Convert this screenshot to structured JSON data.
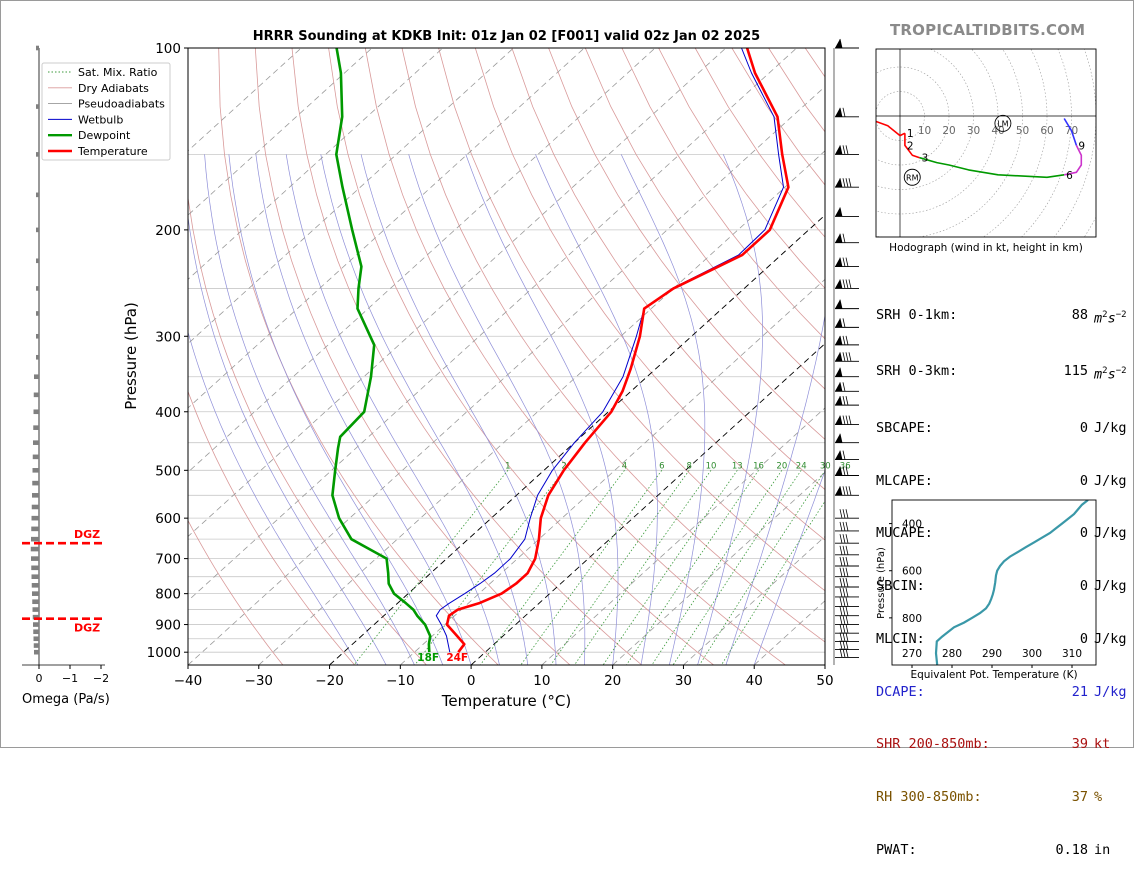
{
  "brand": "TROPICALTIDBITS.COM",
  "chart_data": [
    {
      "type": "line",
      "subtype": "skew-t",
      "title": "HRRR Sounding at KDKB Init: 01z Jan 02 [F001] valid 02z Jan 02 2025",
      "xlabel": "Temperature (°C)",
      "ylabel": "Pressure (hPa)",
      "xlim": [
        -40,
        50
      ],
      "ylim": [
        1050,
        100
      ],
      "yscale": "log",
      "x_ticks": [
        -40,
        -30,
        -20,
        -10,
        0,
        10,
        20,
        30,
        40,
        50
      ],
      "x_tick_labels": [
        "−40",
        "−30",
        "−20",
        "−10",
        "0",
        "10",
        "20",
        "30",
        "40",
        "50"
      ],
      "y_ticks": [
        100,
        200,
        300,
        400,
        500,
        600,
        700,
        800,
        900,
        1000
      ],
      "legend": [
        "Sat. Mix. Ratio",
        "Dry Adiabats",
        "Pseudoadiabats",
        "Wetbulb",
        "Dewpoint",
        "Temperature"
      ],
      "legend_placement": "top-left",
      "mixing_ratio_labels": [
        "1",
        "2",
        "4",
        "6",
        "8",
        "10",
        "13",
        "16",
        "20",
        "24",
        "30",
        "36"
      ],
      "surface_labels": {
        "dewpoint": "18F",
        "temperature": "24F"
      },
      "colors": {
        "temperature": "#ff0000",
        "dewpoint": "#009900",
        "wetbulb": "#0000cc",
        "mixing_ratio": "#2e8b2e",
        "dry_adiabat": "#d08080",
        "pseudoadiabat": "#8080d0"
      },
      "series": [
        {
          "name": "Temperature",
          "p": [
            1000,
            970,
            940,
            900,
            870,
            850,
            830,
            800,
            770,
            740,
            700,
            650,
            600,
            550,
            500,
            450,
            400,
            370,
            340,
            300,
            270,
            250,
            220,
            200,
            170,
            150,
            130,
            110,
            100
          ],
          "t": [
            -3.8,
            -4.2,
            -6.5,
            -9.7,
            -10.8,
            -10.5,
            -8.5,
            -6.8,
            -6.3,
            -6.3,
            -7.5,
            -10.0,
            -13.0,
            -15.5,
            -17.2,
            -18.5,
            -19.6,
            -21.2,
            -23.5,
            -27.3,
            -31.0,
            -30.0,
            -25.5,
            -25.5,
            -29.5,
            -35.5,
            -42.0,
            -52.0,
            -57.0
          ]
        },
        {
          "name": "Dewpoint",
          "p": [
            1000,
            970,
            940,
            900,
            870,
            850,
            830,
            800,
            770,
            740,
            700,
            650,
            600,
            550,
            500,
            460,
            440,
            400,
            350,
            310,
            270,
            250,
            230,
            200,
            170,
            150,
            130,
            110,
            100
          ],
          "t": [
            -7.9,
            -9.2,
            -10.3,
            -12.8,
            -15.3,
            -16.8,
            -18.8,
            -22.0,
            -24.3,
            -26.0,
            -28.5,
            -36.5,
            -41.5,
            -46.0,
            -49.5,
            -52.5,
            -54.0,
            -54.5,
            -59.0,
            -63.5,
            -71.5,
            -74.5,
            -77.5,
            -84.5,
            -92.5,
            -98.5,
            -103.5,
            -110.5,
            -115.0
          ]
        },
        {
          "name": "Wetbulb",
          "p": [
            1000,
            940,
            900,
            870,
            850,
            830,
            800,
            770,
            740,
            700,
            650,
            600,
            550,
            500,
            450,
            400,
            350,
            300,
            270,
            250,
            220,
            200,
            170,
            150,
            130,
            110,
            100
          ],
          "t": [
            -5.0,
            -8.0,
            -10.5,
            -12.6,
            -13.0,
            -12.7,
            -12.0,
            -11.4,
            -11.0,
            -11.0,
            -12.0,
            -14.5,
            -17.0,
            -18.8,
            -20.0,
            -20.8,
            -23.4,
            -27.8,
            -31.0,
            -30.2,
            -26.0,
            -26.2,
            -30.2,
            -36.0,
            -42.5,
            -52.5,
            -57.8
          ]
        }
      ],
      "wind_barbs_column": true
    },
    {
      "type": "line",
      "subtype": "omega-profile",
      "xlabel": "Omega (Pa/s)",
      "x_ticks": [
        0,
        -1,
        -2
      ],
      "x_tick_labels": [
        "0",
        "−1",
        "−2"
      ],
      "dgz_label": "DGZ",
      "dgz_pressures": [
        660,
        880
      ]
    },
    {
      "type": "line",
      "subtype": "hodograph",
      "caption": "Hodograph (wind in kt, height in km)",
      "ring_labels": [
        "10",
        "20",
        "30",
        "40",
        "50",
        "60",
        "70"
      ],
      "height_labels": [
        "1",
        "2",
        "3",
        "6",
        "9"
      ],
      "markers": [
        "LM",
        "RM"
      ],
      "series": [
        {
          "segment": "0-1km",
          "color": "#ff0000",
          "u": [
            -13,
            -5,
            0,
            2
          ],
          "v": [
            -1,
            -4,
            -8,
            -7
          ]
        },
        {
          "segment": "1-3km",
          "color": "#ff0000",
          "u": [
            2,
            2,
            5,
            8
          ],
          "v": [
            -7,
            -12,
            -16,
            -17
          ]
        },
        {
          "segment": "3-6km",
          "color": "#009900",
          "u": [
            8,
            15,
            20,
            28,
            40,
            60,
            67
          ],
          "v": [
            -17,
            -19,
            -20,
            -22,
            -24,
            -25,
            -24
          ]
        },
        {
          "segment": "6-9km",
          "color": "#cc33cc",
          "u": [
            67,
            72,
            74,
            74,
            73,
            72
          ],
          "v": [
            -24,
            -23,
            -20,
            -16,
            -14,
            -12
          ]
        },
        {
          "segment": "9+km",
          "color": "#3333ff",
          "u": [
            72,
            70,
            67
          ],
          "v": [
            -12,
            -6,
            -1
          ]
        }
      ],
      "label_points": {
        "1": [
          2,
          -7
        ],
        "2": [
          2,
          -12
        ],
        "3": [
          8,
          -17
        ],
        "6": [
          67,
          -24
        ],
        "9": [
          72,
          -12
        ],
        "LM": [
          42,
          -3
        ],
        "RM": [
          5,
          -25
        ]
      }
    },
    {
      "type": "line",
      "subtype": "theta-e-profile",
      "xlabel": "Equivalent Pot. Temperature (K)",
      "ylabel": "Pressure (hPa)",
      "xlim": [
        265,
        316
      ],
      "ylim": [
        1000,
        300
      ],
      "x_ticks": [
        270,
        280,
        290,
        300,
        310
      ],
      "y_ticks": [
        400,
        600,
        800
      ],
      "series": [
        {
          "name": "Theta-E",
          "p": [
            1000,
            950,
            900,
            880,
            860,
            840,
            820,
            800,
            780,
            760,
            740,
            720,
            700,
            680,
            650,
            620,
            600,
            580,
            560,
            540,
            520,
            500,
            480,
            460,
            440,
            420,
            400,
            380,
            360,
            340,
            320,
            300
          ],
          "theta_e": [
            276.3,
            276.0,
            276.2,
            277.5,
            279.0,
            280.5,
            283.0,
            285.0,
            287.0,
            288.5,
            289.3,
            289.8,
            290.2,
            290.5,
            290.8,
            291.0,
            291.3,
            292.0,
            293.0,
            294.5,
            296.5,
            298.5,
            300.5,
            302.5,
            304.5,
            306.0,
            307.5,
            309.0,
            310.5,
            311.5,
            312.5,
            314.0
          ]
        }
      ]
    }
  ],
  "stats": [
    {
      "label": "SRH 0-1km:",
      "value": "88",
      "unit": "m2s-2",
      "color": "#000000"
    },
    {
      "label": "SRH 0-3km:",
      "value": "115",
      "unit": "m2s-2",
      "color": "#000000"
    },
    {
      "label": "SBCAPE:",
      "value": "0",
      "unit": "J/kg",
      "color": "#000000"
    },
    {
      "label": "MLCAPE:",
      "value": "0",
      "unit": "J/kg",
      "color": "#000000"
    },
    {
      "label": "MUCAPE:",
      "value": "0",
      "unit": "J/kg",
      "color": "#000000"
    },
    {
      "label": "SBCIN:",
      "value": "0",
      "unit": "J/kg",
      "color": "#000000"
    },
    {
      "label": "MLCIN:",
      "value": "0",
      "unit": "J/kg",
      "color": "#000000"
    },
    {
      "label": "DCAPE:",
      "value": "21",
      "unit": "J/kg",
      "color": "#2222cc"
    },
    {
      "label": "SHR 200-850mb:",
      "value": "39",
      "unit": "kt",
      "color": "#aa1111"
    },
    {
      "label": "RH 300-850mb:",
      "value": "37",
      "unit": "%",
      "color": "#7a5200"
    },
    {
      "label": "PWAT:",
      "value": "0.18",
      "unit": "in",
      "color": "#000000"
    }
  ]
}
